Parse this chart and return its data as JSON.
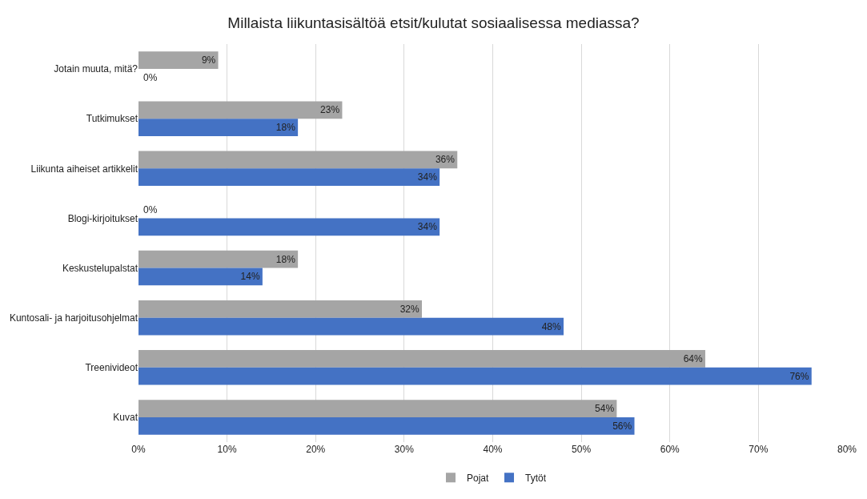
{
  "chart_data": {
    "type": "bar",
    "orientation": "horizontal",
    "title": "Millaista liikuntasisältöä etsit/kulutat sosiaalisessa mediassa?",
    "categories": [
      "Jotain muuta, mitä?",
      "Tutkimukset",
      "Liikunta aiheiset artikkelit",
      "Blogi-kirjoitukset",
      "Keskustelupalstat",
      "Kuntosali- ja harjoitusohjelmat",
      "Treenivideot",
      "Kuvat"
    ],
    "series": [
      {
        "name": "Pojat",
        "color": "#a5a5a5",
        "values": [
          9,
          23,
          36,
          0,
          18,
          32,
          64,
          54
        ],
        "value_labels": [
          "9%",
          "23%",
          "36%",
          "0%",
          "18%",
          "32%",
          "64%",
          "54%"
        ]
      },
      {
        "name": "Tytöt",
        "color": "#4472c4",
        "values": [
          0,
          18,
          34,
          34,
          14,
          48,
          76,
          56
        ],
        "value_labels": [
          "0%",
          "18%",
          "34%",
          "34%",
          "14%",
          "48%",
          "76%",
          "56%"
        ]
      }
    ],
    "xlim": [
      0,
      80
    ],
    "xticks": [
      {
        "value": 0,
        "label": "0%"
      },
      {
        "value": 10,
        "label": "10%"
      },
      {
        "value": 20,
        "label": "20%"
      },
      {
        "value": 30,
        "label": "30%"
      },
      {
        "value": 40,
        "label": "40%"
      },
      {
        "value": 50,
        "label": "50%"
      },
      {
        "value": 60,
        "label": "60%"
      },
      {
        "value": 70,
        "label": "70%"
      },
      {
        "value": 80,
        "label": "80%"
      }
    ],
    "grid": "x",
    "legend": "bottom"
  }
}
